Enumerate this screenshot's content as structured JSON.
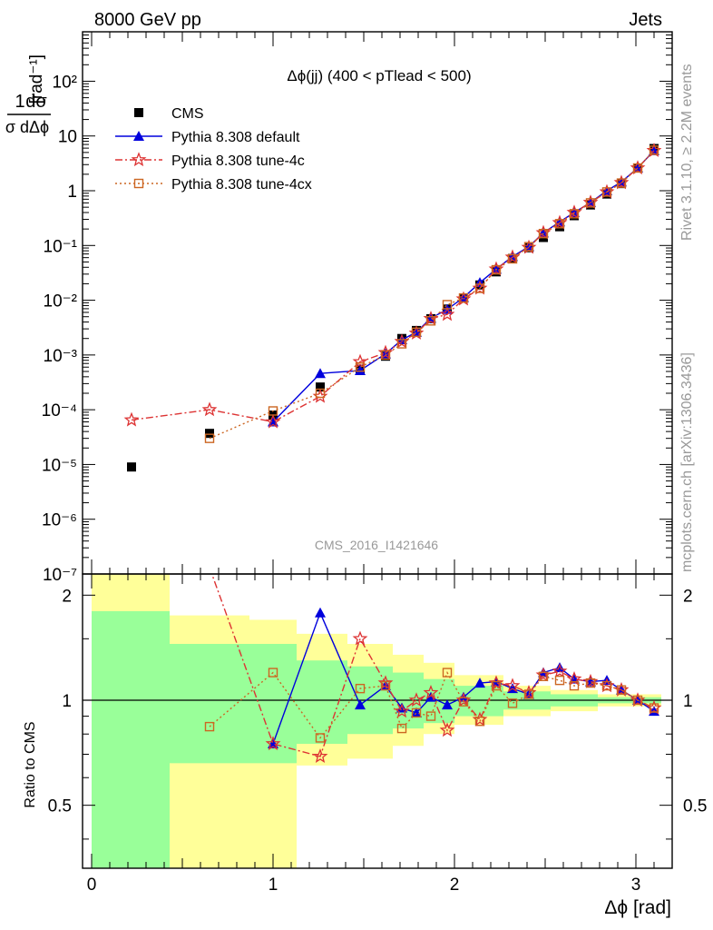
{
  "header": {
    "energy_label": "8000 GeV pp",
    "process_label": "Jets"
  },
  "side_labels": {
    "rivet": "Rivet 3.1.10, ≥ 2.2M events",
    "url": "mcplots.cern.ch [arXiv:1306.3436]"
  },
  "watermark": "CMS_2016_I1421646",
  "main_title": "Δϕ(jj) (400 < pTlead <  500)",
  "y_axis_label": "1/σ dσ/dΔϕ [rad⁻¹]",
  "x_axis_label": "Δϕ [rad]",
  "ratio_axis_label": "Ratio to CMS",
  "legend": [
    {
      "name": "CMS",
      "color": "#000000",
      "marker": "square"
    },
    {
      "name": "Pythia 8.308 default",
      "color": "#0000dd",
      "marker": "triangle"
    },
    {
      "name": "Pythia 8.308 tune-4c",
      "color": "#dd3333",
      "marker": "star"
    },
    {
      "name": "Pythia 8.308 tune-4cx",
      "color": "#cc6622",
      "marker": "open-square"
    }
  ],
  "chart_data": [
    {
      "type": "scatter",
      "panel": "main",
      "yscale": "log",
      "xlim": [
        -0.05,
        3.2
      ],
      "ylim": [
        1e-07,
        800
      ],
      "y_tick_labels": [
        "10⁻⁷",
        "10⁻⁶",
        "10⁻⁵",
        "10⁻⁴",
        "10⁻³",
        "10⁻²",
        "10⁻¹",
        "1",
        "10",
        "10²"
      ],
      "x_tick_labels": [
        "0",
        "1",
        "2",
        "3"
      ],
      "series": [
        {
          "name": "CMS",
          "x": [
            0.22,
            0.65,
            1.0,
            1.26,
            1.48,
            1.62,
            1.71,
            1.79,
            1.87,
            1.96,
            2.05,
            2.14,
            2.23,
            2.32,
            2.41,
            2.49,
            2.58,
            2.66,
            2.75,
            2.84,
            2.92,
            3.01,
            3.1
          ],
          "y": [
            9e-06,
            3.7e-05,
            8e-05,
            0.00026,
            0.00055,
            0.00095,
            0.002,
            0.0028,
            0.0046,
            0.0069,
            0.011,
            0.019,
            0.033,
            0.058,
            0.091,
            0.14,
            0.22,
            0.35,
            0.55,
            0.87,
            1.35,
            2.6,
            5.9
          ]
        },
        {
          "name": "Pythia 8.308 default",
          "x": [
            1.0,
            1.26,
            1.48,
            1.62,
            1.71,
            1.79,
            1.87,
            1.96,
            2.05,
            2.14,
            2.23,
            2.32,
            2.41,
            2.49,
            2.58,
            2.66,
            2.75,
            2.84,
            2.92,
            3.01,
            3.1
          ],
          "y": [
            6e-05,
            0.00046,
            0.00052,
            0.00105,
            0.0019,
            0.0026,
            0.0047,
            0.0068,
            0.0112,
            0.021,
            0.037,
            0.063,
            0.095,
            0.17,
            0.27,
            0.4,
            0.61,
            1.0,
            1.45,
            2.6,
            5.4
          ]
        },
        {
          "name": "Pythia 8.308 tune-4c",
          "x": [
            0.22,
            0.65,
            1.0,
            1.26,
            1.48,
            1.62,
            1.71,
            1.79,
            1.87,
            1.96,
            2.05,
            2.14,
            2.23,
            2.32,
            2.41,
            2.49,
            2.58,
            2.66,
            2.75,
            2.84,
            2.92,
            3.01,
            3.1
          ],
          "y": [
            6.5e-05,
            0.0001,
            6e-05,
            0.000175,
            0.00075,
            0.0011,
            0.00175,
            0.0025,
            0.0046,
            0.0055,
            0.0105,
            0.0165,
            0.037,
            0.061,
            0.092,
            0.17,
            0.26,
            0.4,
            0.61,
            0.95,
            1.4,
            2.6,
            5.4
          ]
        },
        {
          "name": "Pythia 8.308 tune-4cx",
          "x": [
            0.65,
            1.0,
            1.26,
            1.48,
            1.62,
            1.71,
            1.79,
            1.87,
            1.96,
            2.05,
            2.14,
            2.23,
            2.32,
            2.41,
            2.49,
            2.58,
            2.66,
            2.75,
            2.84,
            2.92,
            3.01,
            3.1
          ],
          "y": [
            3e-05,
            9.5e-05,
            0.0002,
            0.0006,
            0.001,
            0.0016,
            0.0026,
            0.0042,
            0.0083,
            0.011,
            0.0165,
            0.036,
            0.057,
            0.095,
            0.165,
            0.25,
            0.38,
            0.6,
            0.95,
            1.38,
            2.6,
            5.5
          ]
        }
      ]
    },
    {
      "type": "line",
      "panel": "ratio",
      "ylabel": "Ratio to CMS",
      "xlabel": "Δϕ [rad]",
      "ylim": [
        0.33,
        2.3
      ],
      "xlim": [
        -0.05,
        3.2
      ],
      "y_tick_labels": [
        "0.5",
        "1",
        "2"
      ],
      "x_tick_labels": [
        "0",
        "1",
        "2",
        "3"
      ],
      "reference_line": 1,
      "uncertainty_bands": [
        {
          "x0": 0.0,
          "x1": 0.43,
          "green": [
            0.33,
            1.8
          ],
          "yellow": [
            0.33,
            2.3
          ]
        },
        {
          "x0": 0.43,
          "x1": 0.87,
          "green": [
            0.66,
            1.45
          ],
          "yellow": [
            0.33,
            1.75
          ]
        },
        {
          "x0": 0.87,
          "x1": 1.13,
          "green": [
            0.66,
            1.45
          ],
          "yellow": [
            0.33,
            1.7
          ]
        },
        {
          "x0": 1.13,
          "x1": 1.41,
          "green": [
            0.75,
            1.3
          ],
          "yellow": [
            0.65,
            1.55
          ]
        },
        {
          "x0": 1.41,
          "x1": 1.66,
          "green": [
            0.8,
            1.25
          ],
          "yellow": [
            0.68,
            1.45
          ]
        },
        {
          "x0": 1.66,
          "x1": 1.83,
          "green": [
            0.83,
            1.2
          ],
          "yellow": [
            0.74,
            1.35
          ]
        },
        {
          "x0": 1.83,
          "x1": 2.0,
          "green": [
            0.86,
            1.15
          ],
          "yellow": [
            0.8,
            1.28
          ]
        },
        {
          "x0": 2.0,
          "x1": 2.27,
          "green": [
            0.9,
            1.1
          ],
          "yellow": [
            0.85,
            1.18
          ]
        },
        {
          "x0": 2.27,
          "x1": 2.53,
          "green": [
            0.94,
            1.06
          ],
          "yellow": [
            0.9,
            1.1
          ]
        },
        {
          "x0": 2.53,
          "x1": 2.79,
          "green": [
            0.96,
            1.04
          ],
          "yellow": [
            0.93,
            1.07
          ]
        },
        {
          "x0": 2.79,
          "x1": 3.14,
          "green": [
            0.98,
            1.02
          ],
          "yellow": [
            0.96,
            1.04
          ]
        }
      ],
      "series": [
        {
          "name": "Pythia 8.308 default",
          "x": [
            1.0,
            1.26,
            1.48,
            1.62,
            1.71,
            1.79,
            1.87,
            1.96,
            2.05,
            2.14,
            2.23,
            2.32,
            2.41,
            2.49,
            2.58,
            2.66,
            2.75,
            2.84,
            2.92,
            3.01,
            3.1
          ],
          "y": [
            0.75,
            1.78,
            0.97,
            1.1,
            0.95,
            0.92,
            1.02,
            0.97,
            1.02,
            1.12,
            1.13,
            1.08,
            1.04,
            1.2,
            1.24,
            1.15,
            1.13,
            1.14,
            1.07,
            1.0,
            0.93
          ]
        },
        {
          "name": "Pythia 8.308 tune-4c",
          "x": [
            0.65,
            1.0,
            1.26,
            1.48,
            1.62,
            1.71,
            1.79,
            1.87,
            1.96,
            2.05,
            2.14,
            2.23,
            2.32,
            2.41,
            2.49,
            2.58,
            2.66,
            2.75,
            2.84,
            2.92,
            3.01,
            3.1
          ],
          "y": [
            2.4,
            0.75,
            0.69,
            1.5,
            1.12,
            0.93,
            1.0,
            1.05,
            0.82,
            1.0,
            0.88,
            1.12,
            1.1,
            1.05,
            1.18,
            1.21,
            1.15,
            1.13,
            1.1,
            1.07,
            1.0,
            0.95
          ]
        },
        {
          "name": "Pythia 8.308 tune-4cx",
          "x": [
            0.65,
            1.0,
            1.26,
            1.48,
            1.62,
            1.71,
            1.79,
            1.87,
            1.96,
            2.05,
            2.14,
            2.23,
            2.32,
            2.41,
            2.49,
            2.58,
            2.66,
            2.75,
            2.84,
            2.92,
            3.01,
            3.1
          ],
          "y": [
            0.84,
            1.2,
            0.78,
            1.08,
            1.1,
            0.83,
            0.92,
            0.9,
            1.2,
            0.99,
            0.87,
            1.1,
            0.98,
            1.04,
            1.17,
            1.14,
            1.1,
            1.12,
            1.1,
            1.07,
            1.0,
            0.95
          ]
        }
      ]
    }
  ]
}
